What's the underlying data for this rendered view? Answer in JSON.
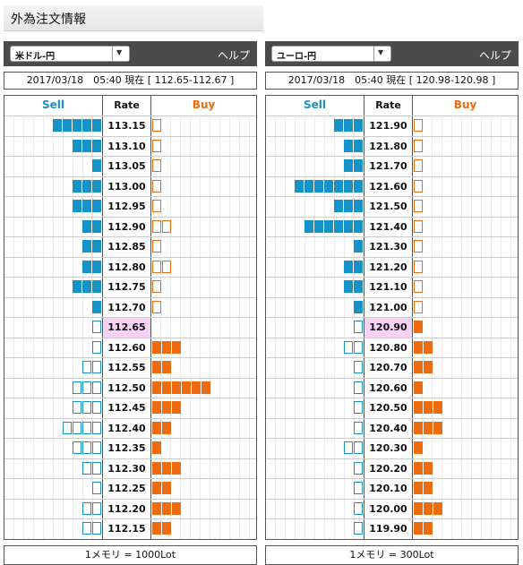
{
  "page_title": "外為注文情報",
  "panels": [
    {
      "pair": "米ドル-円",
      "help_label": "ヘルプ",
      "info": "2017/03/18　05:40 現在 [ 112.65-112.67 ]",
      "col_sell": "Sell",
      "col_rate": "Rate",
      "col_buy": "Buy",
      "footer": "1メモリ = 1000Lot",
      "current_rate": "112.65",
      "rows": [
        {
          "rate": "113.15",
          "sell": 5,
          "sell_outline": false,
          "buy": 1,
          "buy_outline": true
        },
        {
          "rate": "113.10",
          "sell": 3,
          "sell_outline": false,
          "buy": 1,
          "buy_outline": true
        },
        {
          "rate": "113.05",
          "sell": 1,
          "sell_outline": false,
          "buy": 1,
          "buy_outline": true
        },
        {
          "rate": "113.00",
          "sell": 3,
          "sell_outline": false,
          "buy": 1,
          "buy_outline": true
        },
        {
          "rate": "112.95",
          "sell": 3,
          "sell_outline": false,
          "buy": 1,
          "buy_outline": true
        },
        {
          "rate": "112.90",
          "sell": 2,
          "sell_outline": false,
          "buy": 2,
          "buy_outline": true
        },
        {
          "rate": "112.85",
          "sell": 2,
          "sell_outline": false,
          "buy": 1,
          "buy_outline": true
        },
        {
          "rate": "112.80",
          "sell": 2,
          "sell_outline": false,
          "buy": 2,
          "buy_outline": true
        },
        {
          "rate": "112.75",
          "sell": 3,
          "sell_outline": false,
          "buy": 1,
          "buy_outline": true
        },
        {
          "rate": "112.70",
          "sell": 1,
          "sell_outline": false,
          "buy": 1,
          "buy_outline": true
        },
        {
          "rate": "112.65",
          "sell": 1,
          "sell_outline": true,
          "buy": 0,
          "buy_outline": false
        },
        {
          "rate": "112.60",
          "sell": 1,
          "sell_outline": true,
          "buy": 3,
          "buy_outline": false
        },
        {
          "rate": "112.55",
          "sell": 2,
          "sell_outline": true,
          "buy": 2,
          "buy_outline": false
        },
        {
          "rate": "112.50",
          "sell": 3,
          "sell_outline": true,
          "buy": 6,
          "buy_outline": false
        },
        {
          "rate": "112.45",
          "sell": 3,
          "sell_outline": true,
          "buy": 3,
          "buy_outline": false
        },
        {
          "rate": "112.40",
          "sell": 4,
          "sell_outline": true,
          "buy": 2,
          "buy_outline": false
        },
        {
          "rate": "112.35",
          "sell": 3,
          "sell_outline": true,
          "buy": 1,
          "buy_outline": false
        },
        {
          "rate": "112.30",
          "sell": 2,
          "sell_outline": true,
          "buy": 3,
          "buy_outline": false
        },
        {
          "rate": "112.25",
          "sell": 1,
          "sell_outline": true,
          "buy": 2,
          "buy_outline": false
        },
        {
          "rate": "112.20",
          "sell": 2,
          "sell_outline": true,
          "buy": 3,
          "buy_outline": false
        },
        {
          "rate": "112.15",
          "sell": 2,
          "sell_outline": true,
          "buy": 2,
          "buy_outline": false
        }
      ]
    },
    {
      "pair": "ユーロ-円",
      "help_label": "ヘルプ",
      "info": "2017/03/18　05:40 現在 [ 120.98-120.98 ]",
      "col_sell": "Sell",
      "col_rate": "Rate",
      "col_buy": "Buy",
      "footer": "1メモリ = 300Lot",
      "current_rate": "120.90",
      "rows": [
        {
          "rate": "121.90",
          "sell": 3,
          "sell_outline": false,
          "buy": 1,
          "buy_outline": true
        },
        {
          "rate": "121.80",
          "sell": 2,
          "sell_outline": false,
          "buy": 1,
          "buy_outline": true
        },
        {
          "rate": "121.70",
          "sell": 2,
          "sell_outline": false,
          "buy": 1,
          "buy_outline": true
        },
        {
          "rate": "121.60",
          "sell": 7,
          "sell_outline": false,
          "buy": 1,
          "buy_outline": true
        },
        {
          "rate": "121.50",
          "sell": 3,
          "sell_outline": false,
          "buy": 1,
          "buy_outline": true
        },
        {
          "rate": "121.40",
          "sell": 6,
          "sell_outline": false,
          "buy": 1,
          "buy_outline": true
        },
        {
          "rate": "121.30",
          "sell": 1,
          "sell_outline": false,
          "buy": 1,
          "buy_outline": true
        },
        {
          "rate": "121.20",
          "sell": 2,
          "sell_outline": false,
          "buy": 1,
          "buy_outline": true
        },
        {
          "rate": "121.10",
          "sell": 2,
          "sell_outline": false,
          "buy": 1,
          "buy_outline": true
        },
        {
          "rate": "121.00",
          "sell": 1,
          "sell_outline": false,
          "buy": 1,
          "buy_outline": true
        },
        {
          "rate": "120.90",
          "sell": 1,
          "sell_outline": true,
          "buy": 1,
          "buy_outline": false
        },
        {
          "rate": "120.80",
          "sell": 2,
          "sell_outline": true,
          "buy": 2,
          "buy_outline": false
        },
        {
          "rate": "120.70",
          "sell": 1,
          "sell_outline": true,
          "buy": 2,
          "buy_outline": false
        },
        {
          "rate": "120.60",
          "sell": 1,
          "sell_outline": true,
          "buy": 1,
          "buy_outline": false
        },
        {
          "rate": "120.50",
          "sell": 1,
          "sell_outline": true,
          "buy": 3,
          "buy_outline": false
        },
        {
          "rate": "120.40",
          "sell": 1,
          "sell_outline": true,
          "buy": 3,
          "buy_outline": false
        },
        {
          "rate": "120.30",
          "sell": 2,
          "sell_outline": true,
          "buy": 1,
          "buy_outline": false
        },
        {
          "rate": "120.20",
          "sell": 1,
          "sell_outline": true,
          "buy": 2,
          "buy_outline": false
        },
        {
          "rate": "120.10",
          "sell": 1,
          "sell_outline": true,
          "buy": 2,
          "buy_outline": false
        },
        {
          "rate": "120.00",
          "sell": 1,
          "sell_outline": true,
          "buy": 3,
          "buy_outline": false
        },
        {
          "rate": "119.90",
          "sell": 1,
          "sell_outline": true,
          "buy": 2,
          "buy_outline": false
        }
      ]
    }
  ]
}
